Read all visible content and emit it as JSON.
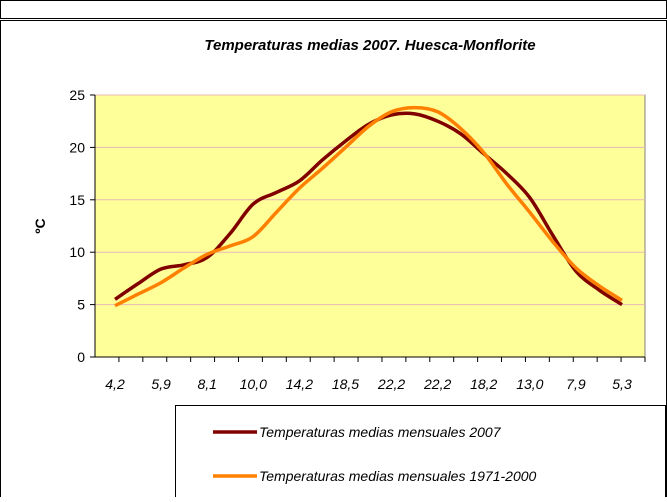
{
  "chart_data": {
    "type": "line",
    "title": "Temperaturas medias 2007. Huesca-Monflorite",
    "y_label": "ºC",
    "categories": [
      "4,2",
      null,
      "5,9",
      null,
      "8,1",
      null,
      "10,0",
      null,
      "14,2",
      null,
      "18,5",
      null,
      "22,2",
      null,
      "22,2",
      null,
      "18,2",
      null,
      "13,0",
      null,
      "7,9",
      null,
      "5,3"
    ],
    "series": [
      {
        "name": "Temperaturas medias mensuales 2007",
        "color": "#800000",
        "values": [
          5.5,
          7.0,
          8.4,
          8.8,
          9.5,
          11.8,
          14.6,
          15.7,
          16.8,
          18.8,
          20.6,
          22.2,
          23.1,
          23.2,
          22.5,
          21.3,
          19.4,
          17.5,
          15.2,
          11.6,
          8.2,
          6.4,
          5.0
        ]
      },
      {
        "name": "Temperaturas medias mensuales 1971-2000",
        "color": "#FF8000",
        "values": [
          4.9,
          6.0,
          7.1,
          8.5,
          9.8,
          10.6,
          11.5,
          13.8,
          16.1,
          18.0,
          20.0,
          22.0,
          23.4,
          23.8,
          23.4,
          21.8,
          19.5,
          16.5,
          13.8,
          11.0,
          8.5,
          6.8,
          5.4
        ]
      }
    ],
    "ylim": [
      0,
      25
    ],
    "yticks": [
      0,
      5,
      10,
      15,
      20,
      25
    ],
    "grid": true,
    "plot_background": "#FFFF99"
  }
}
